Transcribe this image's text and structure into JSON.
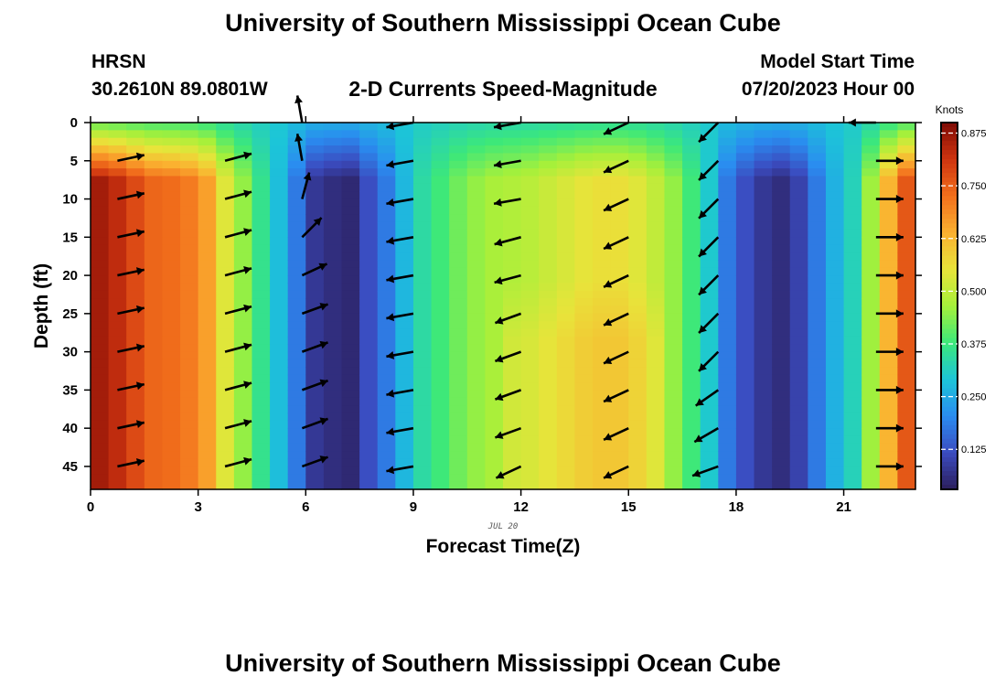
{
  "header": {
    "title": "University of Southern Mississippi Ocean Cube",
    "station": "HRSN",
    "coords": "30.2610N  89.0801W",
    "plot_title": "2-D Currents Speed-Magnitude",
    "model_label": "Model Start Time",
    "model_time": "07/20/2023 Hour 00",
    "footer_title": "University of Southern Mississippi Ocean Cube"
  },
  "chart_data": {
    "type": "heatmap",
    "title": "2-D Currents Speed-Magnitude",
    "xlabel": "Forecast Time(Z)",
    "ylabel": "Depth (ft)",
    "date_label": "JUL 20",
    "x_ticks": [
      0,
      3,
      6,
      9,
      12,
      15,
      18,
      21
    ],
    "y_ticks": [
      0,
      5,
      10,
      15,
      20,
      25,
      30,
      35,
      40,
      45
    ],
    "xlim": [
      0,
      23
    ],
    "ylim": [
      0,
      48
    ],
    "y_inverted": true,
    "colorbar": {
      "label": "Knots",
      "ticks": [
        0.125,
        0.25,
        0.375,
        0.5,
        0.625,
        0.75,
        0.875
      ],
      "range": [
        0.03,
        0.9
      ],
      "colormap": [
        "#2b1e5c",
        "#3b4cc0",
        "#2a8cf0",
        "#1cc5d8",
        "#3ce87a",
        "#a6f03a",
        "#e8e43a",
        "#fbb030",
        "#f26f1c",
        "#cf3410",
        "#7e0a04"
      ]
    },
    "times": [
      0,
      0.5,
      1,
      1.5,
      2,
      2.5,
      3,
      3.5,
      4,
      4.5,
      5,
      5.5,
      6,
      6.5,
      7,
      7.5,
      8,
      8.5,
      9,
      9.5,
      10,
      10.5,
      11,
      11.5,
      12,
      12.5,
      13,
      13.5,
      14,
      14.5,
      15,
      15.5,
      16,
      16.5,
      17,
      17.5,
      18,
      18.5,
      19,
      19.5,
      20,
      20.5,
      21,
      21.5,
      22,
      22.5
    ],
    "speed_deep_profile": [
      0.86,
      0.83,
      0.78,
      0.74,
      0.73,
      0.71,
      0.66,
      0.54,
      0.45,
      0.36,
      0.28,
      0.18,
      0.08,
      0.06,
      0.05,
      0.12,
      0.18,
      0.27,
      0.34,
      0.38,
      0.42,
      0.45,
      0.47,
      0.48,
      0.49,
      0.51,
      0.53,
      0.55,
      0.56,
      0.56,
      0.54,
      0.5,
      0.45,
      0.38,
      0.3,
      0.18,
      0.12,
      0.08,
      0.06,
      0.1,
      0.18,
      0.26,
      0.32,
      0.46,
      0.63,
      0.76
    ],
    "surface_speed_knots": 0.3,
    "vector_times": [
      0.75,
      3.75,
      5.9,
      9,
      12,
      15,
      17.5,
      21.9
    ],
    "vector_depths": [
      0,
      5,
      10,
      15,
      20,
      25,
      30,
      35,
      40,
      45
    ],
    "vector_direction_deg": [
      [
        null,
        12,
        12,
        12,
        12,
        12,
        12,
        12,
        12,
        12
      ],
      [
        null,
        15,
        15,
        15,
        15,
        15,
        15,
        15,
        15,
        15
      ],
      [
        100,
        100,
        75,
        45,
        25,
        20,
        20,
        20,
        20,
        20
      ],
      [
        190,
        190,
        190,
        190,
        190,
        190,
        190,
        190,
        190,
        190
      ],
      [
        190,
        190,
        190,
        195,
        195,
        200,
        200,
        200,
        200,
        205
      ],
      [
        205,
        205,
        205,
        205,
        205,
        205,
        205,
        205,
        205,
        205
      ],
      [
        225,
        225,
        225,
        225,
        225,
        225,
        225,
        215,
        210,
        200
      ],
      [
        180,
        0,
        0,
        0,
        0,
        0,
        0,
        0,
        0,
        0
      ]
    ]
  }
}
